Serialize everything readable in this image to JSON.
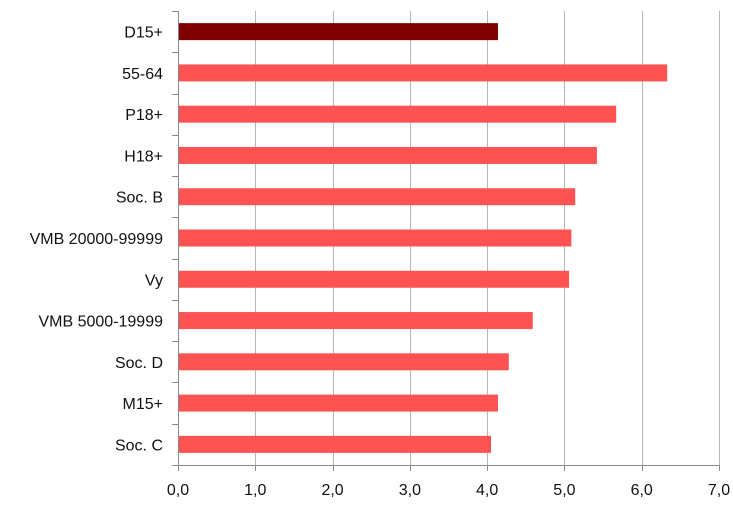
{
  "chart_data": {
    "type": "bar",
    "orientation": "horizontal",
    "title": "",
    "xlabel": "",
    "ylabel": "",
    "categories": [
      "D15+",
      "55-64",
      "P18+",
      "H18+",
      "Soc. B",
      "VMB 20000-99999",
      "Vy",
      "VMB 5000-19999",
      "Soc. D",
      "M15+",
      "Soc. C"
    ],
    "values": [
      4.14,
      6.33,
      5.67,
      5.42,
      5.14,
      5.09,
      5.06,
      4.59,
      4.28,
      4.14,
      4.05
    ],
    "xlim": [
      0,
      7
    ],
    "x_ticks": [
      "0,0",
      "1,0",
      "2,0",
      "3,0",
      "4,0",
      "5,0",
      "6,0",
      "7,0"
    ],
    "grid": "vertical",
    "legend": "none",
    "colors": {
      "highlight": "#7f0000",
      "bar": "#ff5252",
      "grid": "#b7b7b7",
      "axis": "#8a8a8a"
    },
    "highlight_index": 0
  }
}
